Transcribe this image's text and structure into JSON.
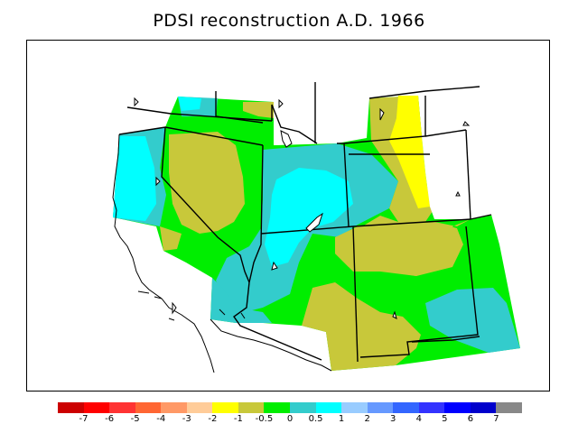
{
  "title": "PDSI reconstruction A.D. 1966",
  "legend": {
    "colors": [
      "#cc0000",
      "#ff0000",
      "#ff3333",
      "#ff6633",
      "#ff9966",
      "#ffcc99",
      "#ffff00",
      "#c8c83a",
      "#00ee00",
      "#33cccc",
      "#00ffff",
      "#99ccff",
      "#6699ff",
      "#3366ff",
      "#3333ff",
      "#0000ff",
      "#0000cc",
      "#888888"
    ],
    "labels": [
      "-7",
      "-6",
      "-5",
      "-4",
      "-3",
      "-2",
      "-1",
      "-0.5",
      "0",
      "0.5",
      "1",
      "2",
      "3",
      "4",
      "5",
      "6",
      "7"
    ]
  },
  "palette": {
    "wet_0_05": "#33cccc",
    "wet_05_1": "#00ffff",
    "near_normal": "#00ee00",
    "dry_05_1": "#c8c83a",
    "dry_1_2": "#ffff00",
    "no_data": "#ffffff"
  }
}
